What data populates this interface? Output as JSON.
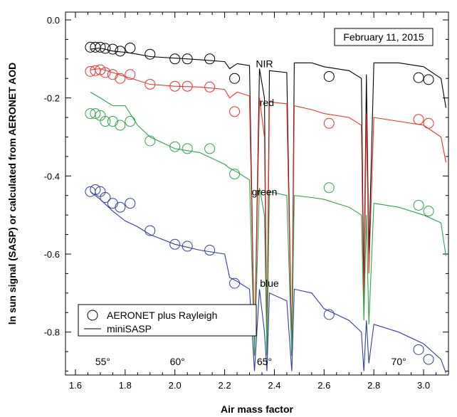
{
  "chart_data": {
    "type": "line",
    "date_label": "February 11, 2015",
    "xlabel": "Air mass factor",
    "ylabel": "ln sun signal (SASP) or calculated from AERONET AOD",
    "xlim": [
      1.56,
      3.1
    ],
    "ylim": [
      -0.91,
      0.02
    ],
    "x_ticks": [
      1.6,
      1.8,
      2.0,
      2.2,
      2.4,
      2.6,
      2.8,
      3.0
    ],
    "x_tick_labels": [
      "1.6",
      "1.8",
      "2.0",
      "2.2",
      "2.4",
      "2.6",
      "2.8",
      "3.0"
    ],
    "y_ticks": [
      0.0,
      -0.2,
      -0.4,
      -0.6,
      -0.8
    ],
    "y_tick_labels": [
      "0.0",
      "-0.2",
      "-0.4",
      "-0.6",
      "-0.8"
    ],
    "grid": false,
    "legend": {
      "position": "bottom-left",
      "entries": [
        {
          "label": "AERONET plus Rayleigh",
          "marker": "circle"
        },
        {
          "label": "miniSASP",
          "marker": "line"
        }
      ]
    },
    "annotations": [
      {
        "text": "55°",
        "x": 1.71,
        "y": -0.875
      },
      {
        "text": "60°",
        "x": 2.01,
        "y": -0.875
      },
      {
        "text": "65°",
        "x": 2.36,
        "y": -0.875
      },
      {
        "text": "70°",
        "x": 2.9,
        "y": -0.875
      }
    ],
    "series": [
      {
        "name": "NIR",
        "color": "#000000",
        "label_pos": {
          "x": 2.36,
          "y": -0.112
        },
        "minisasp": [
          [
            1.66,
            -0.075
          ],
          [
            1.7,
            -0.072
          ],
          [
            1.75,
            -0.08
          ],
          [
            1.8,
            -0.083
          ],
          [
            1.85,
            -0.088
          ],
          [
            1.9,
            -0.094
          ],
          [
            2.0,
            -0.098
          ],
          [
            2.1,
            -0.102
          ],
          [
            2.2,
            -0.107
          ],
          [
            2.22,
            -0.125
          ],
          [
            2.25,
            -0.112
          ],
          [
            2.3,
            -0.117
          ],
          [
            2.32,
            -0.86
          ],
          [
            2.34,
            -0.125
          ],
          [
            2.36,
            -0.2
          ],
          [
            2.37,
            -0.86
          ],
          [
            2.38,
            -0.13
          ],
          [
            2.45,
            -0.135
          ],
          [
            2.47,
            -0.86
          ],
          [
            2.48,
            -0.11
          ],
          [
            2.55,
            -0.11
          ],
          [
            2.6,
            -0.12
          ],
          [
            2.7,
            -0.13
          ],
          [
            2.75,
            -0.15
          ],
          [
            2.76,
            -0.7
          ],
          [
            2.77,
            -0.14
          ],
          [
            2.78,
            -0.6
          ],
          [
            2.8,
            -0.11
          ],
          [
            2.9,
            -0.11
          ],
          [
            3.0,
            -0.12
          ],
          [
            3.07,
            -0.15
          ],
          [
            3.09,
            -0.225
          ]
        ],
        "aeronet": [
          [
            1.66,
            -0.07
          ],
          [
            1.68,
            -0.07
          ],
          [
            1.7,
            -0.07
          ],
          [
            1.72,
            -0.073
          ],
          [
            1.75,
            -0.075
          ],
          [
            1.78,
            -0.08
          ],
          [
            1.82,
            -0.072
          ],
          [
            1.9,
            -0.088
          ],
          [
            2.0,
            -0.1
          ],
          [
            2.05,
            -0.1
          ],
          [
            2.14,
            -0.1
          ],
          [
            2.24,
            -0.15
          ],
          [
            2.62,
            -0.145
          ],
          [
            2.98,
            -0.148
          ],
          [
            3.02,
            -0.153
          ]
        ]
      },
      {
        "name": "red",
        "color": "#e8342c",
        "label_pos": {
          "x": 2.37,
          "y": -0.212
        },
        "minisasp": [
          [
            1.66,
            -0.128
          ],
          [
            1.7,
            -0.125
          ],
          [
            1.75,
            -0.135
          ],
          [
            1.8,
            -0.145
          ],
          [
            1.85,
            -0.155
          ],
          [
            1.9,
            -0.165
          ],
          [
            2.0,
            -0.17
          ],
          [
            2.1,
            -0.172
          ],
          [
            2.2,
            -0.178
          ],
          [
            2.22,
            -0.2
          ],
          [
            2.25,
            -0.185
          ],
          [
            2.3,
            -0.195
          ],
          [
            2.32,
            -0.86
          ],
          [
            2.34,
            -0.2
          ],
          [
            2.36,
            -0.3
          ],
          [
            2.37,
            -0.86
          ],
          [
            2.38,
            -0.21
          ],
          [
            2.45,
            -0.215
          ],
          [
            2.47,
            -0.86
          ],
          [
            2.48,
            -0.22
          ],
          [
            2.55,
            -0.23
          ],
          [
            2.6,
            -0.24
          ],
          [
            2.7,
            -0.25
          ],
          [
            2.75,
            -0.27
          ],
          [
            2.76,
            -0.75
          ],
          [
            2.77,
            -0.24
          ],
          [
            2.78,
            -0.65
          ],
          [
            2.8,
            -0.25
          ],
          [
            2.9,
            -0.26
          ],
          [
            3.0,
            -0.27
          ],
          [
            3.07,
            -0.3
          ],
          [
            3.09,
            -0.365
          ]
        ],
        "aeronet": [
          [
            1.66,
            -0.132
          ],
          [
            1.68,
            -0.13
          ],
          [
            1.7,
            -0.128
          ],
          [
            1.72,
            -0.135
          ],
          [
            1.75,
            -0.14
          ],
          [
            1.78,
            -0.15
          ],
          [
            1.82,
            -0.14
          ],
          [
            1.9,
            -0.165
          ],
          [
            2.0,
            -0.17
          ],
          [
            2.05,
            -0.17
          ],
          [
            2.14,
            -0.172
          ],
          [
            2.24,
            -0.235
          ],
          [
            2.62,
            -0.265
          ],
          [
            2.98,
            -0.255
          ],
          [
            3.02,
            -0.265
          ]
        ]
      },
      {
        "name": "green",
        "color": "#2ea44a",
        "label_pos": {
          "x": 2.36,
          "y": -0.44
        },
        "minisasp": [
          [
            1.66,
            -0.185
          ],
          [
            1.7,
            -0.2
          ],
          [
            1.75,
            -0.22
          ],
          [
            1.8,
            -0.22
          ],
          [
            1.85,
            -0.27
          ],
          [
            1.9,
            -0.3
          ],
          [
            2.0,
            -0.33
          ],
          [
            2.1,
            -0.34
          ],
          [
            2.2,
            -0.37
          ],
          [
            2.22,
            -0.38
          ],
          [
            2.25,
            -0.39
          ],
          [
            2.3,
            -0.41
          ],
          [
            2.32,
            -0.86
          ],
          [
            2.34,
            -0.43
          ],
          [
            2.36,
            -0.5
          ],
          [
            2.37,
            -0.86
          ],
          [
            2.38,
            -0.44
          ],
          [
            2.45,
            -0.45
          ],
          [
            2.47,
            -0.86
          ],
          [
            2.48,
            -0.45
          ],
          [
            2.55,
            -0.455
          ],
          [
            2.6,
            -0.46
          ],
          [
            2.7,
            -0.48
          ],
          [
            2.75,
            -0.5
          ],
          [
            2.76,
            -0.77
          ],
          [
            2.77,
            -0.5
          ],
          [
            2.78,
            -0.78
          ],
          [
            2.8,
            -0.47
          ],
          [
            2.9,
            -0.48
          ],
          [
            3.0,
            -0.5
          ],
          [
            3.07,
            -0.52
          ],
          [
            3.09,
            -0.605
          ]
        ],
        "aeronet": [
          [
            1.66,
            -0.24
          ],
          [
            1.68,
            -0.24
          ],
          [
            1.7,
            -0.245
          ],
          [
            1.72,
            -0.26
          ],
          [
            1.75,
            -0.26
          ],
          [
            1.78,
            -0.27
          ],
          [
            1.82,
            -0.26
          ],
          [
            1.9,
            -0.31
          ],
          [
            2.0,
            -0.325
          ],
          [
            2.05,
            -0.33
          ],
          [
            2.14,
            -0.33
          ],
          [
            2.24,
            -0.395
          ],
          [
            2.62,
            -0.43
          ],
          [
            2.98,
            -0.475
          ],
          [
            3.02,
            -0.49
          ]
        ]
      },
      {
        "name": "blue",
        "color": "#2f3fa0",
        "label_pos": {
          "x": 2.38,
          "y": -0.675
        },
        "minisasp": [
          [
            1.66,
            -0.44
          ],
          [
            1.7,
            -0.46
          ],
          [
            1.75,
            -0.49
          ],
          [
            1.8,
            -0.515
          ],
          [
            1.85,
            -0.53
          ],
          [
            1.9,
            -0.55
          ],
          [
            2.0,
            -0.575
          ],
          [
            2.1,
            -0.59
          ],
          [
            2.2,
            -0.6
          ],
          [
            2.22,
            -0.66
          ],
          [
            2.25,
            -0.67
          ],
          [
            2.3,
            -0.69
          ],
          [
            2.32,
            -0.9
          ],
          [
            2.34,
            -0.69
          ],
          [
            2.36,
            -0.8
          ],
          [
            2.37,
            -0.9
          ],
          [
            2.38,
            -0.7
          ],
          [
            2.45,
            -0.72
          ],
          [
            2.47,
            -0.9
          ],
          [
            2.48,
            -0.69
          ],
          [
            2.55,
            -0.7
          ],
          [
            2.6,
            -0.74
          ],
          [
            2.7,
            -0.77
          ],
          [
            2.75,
            -0.8
          ],
          [
            2.76,
            -0.9
          ],
          [
            2.77,
            -0.77
          ],
          [
            2.78,
            -0.88
          ],
          [
            2.8,
            -0.78
          ],
          [
            2.9,
            -0.8
          ],
          [
            3.0,
            -0.83
          ],
          [
            3.07,
            -0.87
          ],
          [
            3.09,
            -0.905
          ]
        ],
        "aeronet": [
          [
            1.66,
            -0.44
          ],
          [
            1.68,
            -0.435
          ],
          [
            1.7,
            -0.44
          ],
          [
            1.72,
            -0.455
          ],
          [
            1.75,
            -0.47
          ],
          [
            1.78,
            -0.48
          ],
          [
            1.82,
            -0.47
          ],
          [
            1.9,
            -0.54
          ],
          [
            2.0,
            -0.575
          ],
          [
            2.05,
            -0.58
          ],
          [
            2.14,
            -0.59
          ],
          [
            2.24,
            -0.675
          ],
          [
            2.62,
            -0.755
          ],
          [
            2.98,
            -0.845
          ],
          [
            3.02,
            -0.87
          ]
        ]
      }
    ]
  }
}
